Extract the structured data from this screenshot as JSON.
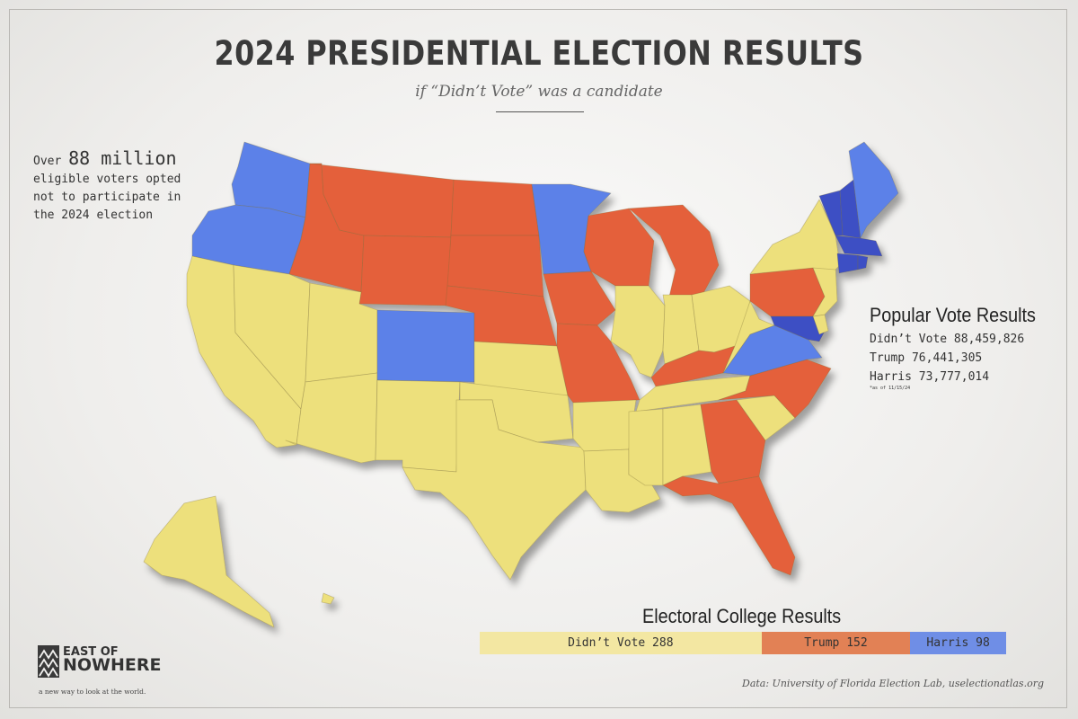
{
  "title": "2024 PRESIDENTIAL ELECTION RESULTS",
  "subtitle": "if “Didn’t Vote” was a candidate",
  "callout": {
    "line1_prefix": "Over ",
    "line1_big": "88 million",
    "line2": "eligible voters opted",
    "line3": "not to participate in",
    "line4": "the 2024 election"
  },
  "colors": {
    "didnt_vote": "#ede07b",
    "trump": "#e4603a",
    "harris": "#5b81e8",
    "harris_dark": "#3c4fc4",
    "bar_didnt_vote": "#f3e7a2",
    "bar_trump": "#e28155",
    "bar_harris": "#6f8ee6"
  },
  "states": {
    "didnt_vote": [
      "CA",
      "NV",
      "UT",
      "AZ",
      "NM",
      "TX",
      "OK",
      "KS",
      "AR",
      "LA",
      "MS",
      "AL",
      "TN",
      "SC",
      "WV",
      "IL",
      "IN",
      "OH",
      "NY",
      "NJ",
      "DE",
      "AK",
      "HI"
    ],
    "trump": [
      "ID",
      "MT",
      "WY",
      "ND",
      "SD",
      "NE",
      "IA",
      "MO",
      "WI",
      "MI",
      "KY",
      "PA",
      "NC",
      "GA",
      "FL"
    ],
    "harris": [
      "WA",
      "OR",
      "CO",
      "MN",
      "VA",
      "MD",
      "VT",
      "NH",
      "ME",
      "MA",
      "CT",
      "RI"
    ]
  },
  "popular_vote": {
    "title": "Popular Vote Results",
    "rows": [
      {
        "label": "Didn’t Vote",
        "value": "88,459,826"
      },
      {
        "label": "Trump",
        "value": "76,441,305"
      },
      {
        "label": "Harris",
        "value": "73,777,014"
      }
    ],
    "note": "*as of 11/15/24"
  },
  "electoral_college": {
    "title": "Electoral College Results",
    "segments": [
      {
        "label": "Didn’t Vote 288",
        "votes": 288
      },
      {
        "label": "Trump 152",
        "votes": 152
      },
      {
        "label": "Harris 98",
        "votes": 98
      }
    ]
  },
  "logo": {
    "line1": "EAST OF",
    "line2": "NOWHERE",
    "tagline": "a new way to look at the world."
  },
  "source": "Data: University of Florida Election Lab, uselectionatlas.org"
}
